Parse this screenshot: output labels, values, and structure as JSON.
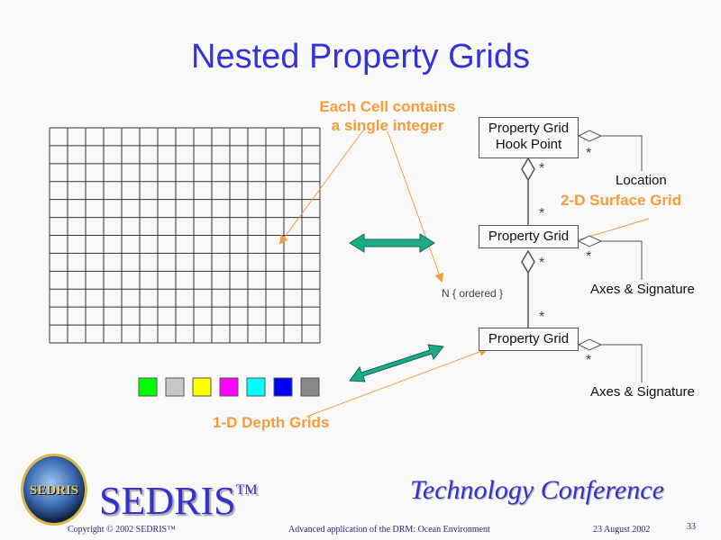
{
  "title": "Nested Property Grids",
  "annotations": {
    "each_cell": [
      "Each Cell contains",
      "a single integer"
    ],
    "surface_grid": "2-D Surface Grid",
    "depth_grids": "1-D Depth Grids",
    "ordered": "N { ordered }"
  },
  "grid": {
    "columns": 15,
    "rows": 12
  },
  "swatches": [
    "#00ff00",
    "#c8c8c8",
    "#ffff00",
    "#ff00ff",
    "#00ffff",
    "#0000ff",
    "#888888"
  ],
  "uml": {
    "hook_point": [
      "Property Grid",
      "Hook Point"
    ],
    "property_grid_2d": "Property Grid",
    "property_grid_1d": "Property Grid",
    "location": "Location",
    "axes_1": "Axes & Signature",
    "axes_2": "Axes & Signature",
    "multiplicity": "*"
  },
  "colors": {
    "title": "#3333dd",
    "annotation": "#f79c3c",
    "double_arrow": "#1faa88"
  },
  "footer": {
    "logo_text": "SEDRIS",
    "brand": "SEDRIS",
    "tm": "TM",
    "conference": "Technology Conference",
    "copyright": "Copyright © 2002 SEDRIS™",
    "subtitle": "Advanced application of the DRM: Ocean Environment",
    "date": "23 August 2002",
    "page": "33"
  }
}
